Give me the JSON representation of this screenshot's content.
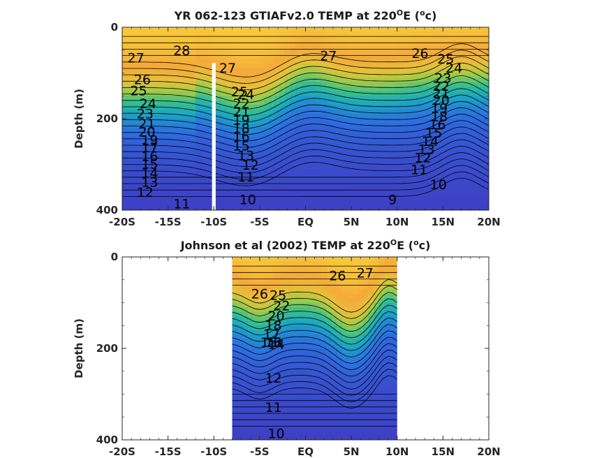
{
  "chart_data": [
    {
      "type": "heatmap",
      "title": "YR 062-123 GTIAFv2.0 TEMP at 220",
      "title_sup": "O",
      "title_unit_pre": "E (",
      "title_unit_sup": "o",
      "title_unit_post": "c)",
      "ylabel": "Depth (m)",
      "xlim": [
        -20,
        20
      ],
      "ylim": [
        0,
        400
      ],
      "y_reversed": true,
      "xticks": [
        "-20S",
        "-15S",
        "-10S",
        "-5S",
        "EQ",
        "5N",
        "10N",
        "15N",
        "20N"
      ],
      "yticks": [
        "0",
        "200",
        "400"
      ],
      "colormap": [
        "#3e3fc4",
        "#2c6fe0",
        "#1aa6c4",
        "#37bf8d",
        "#9bcb4a",
        "#e6c13a",
        "#f4a93a",
        "#f7cc3b"
      ],
      "mask_x_range": [
        -10.2,
        -9.8
      ],
      "mask_depth_from": 78,
      "contour_labels": [
        {
          "x": -18.5,
          "y": 68,
          "text": "27"
        },
        {
          "x": -13.5,
          "y": 52,
          "text": "28"
        },
        {
          "x": -8.5,
          "y": 90,
          "text": "27"
        },
        {
          "x": 2.5,
          "y": 63,
          "text": "27"
        },
        {
          "x": 12.5,
          "y": 58,
          "text": "26"
        },
        {
          "x": 15.3,
          "y": 70,
          "text": "25"
        },
        {
          "x": 16.2,
          "y": 90,
          "text": "24"
        },
        {
          "x": -17.8,
          "y": 115,
          "text": "26"
        },
        {
          "x": -18.2,
          "y": 140,
          "text": "25"
        },
        {
          "x": -17.2,
          "y": 168,
          "text": "24"
        },
        {
          "x": -17.5,
          "y": 190,
          "text": "23"
        },
        {
          "x": -17.3,
          "y": 212,
          "text": "21"
        },
        {
          "x": -17.3,
          "y": 230,
          "text": "20"
        },
        {
          "x": -17.0,
          "y": 248,
          "text": "19"
        },
        {
          "x": -17.0,
          "y": 264,
          "text": "17"
        },
        {
          "x": -17.0,
          "y": 283,
          "text": "16"
        },
        {
          "x": -17.0,
          "y": 300,
          "text": "15"
        },
        {
          "x": -17.0,
          "y": 320,
          "text": "14"
        },
        {
          "x": -17.0,
          "y": 340,
          "text": "13"
        },
        {
          "x": -17.5,
          "y": 362,
          "text": "12"
        },
        {
          "x": -13.5,
          "y": 387,
          "text": "11"
        },
        {
          "x": -7.2,
          "y": 142,
          "text": "25"
        },
        {
          "x": -6.5,
          "y": 148,
          "text": "24"
        },
        {
          "x": -7.0,
          "y": 168,
          "text": "22"
        },
        {
          "x": -7.0,
          "y": 186,
          "text": "21"
        },
        {
          "x": -7.0,
          "y": 204,
          "text": "19"
        },
        {
          "x": -7.0,
          "y": 222,
          "text": "18"
        },
        {
          "x": -7.0,
          "y": 240,
          "text": "16"
        },
        {
          "x": -7.0,
          "y": 260,
          "text": "15"
        },
        {
          "x": -6.5,
          "y": 282,
          "text": "13"
        },
        {
          "x": -6.0,
          "y": 302,
          "text": "12"
        },
        {
          "x": -6.5,
          "y": 328,
          "text": "11"
        },
        {
          "x": -6.3,
          "y": 378,
          "text": "10"
        },
        {
          "x": 9.5,
          "y": 378,
          "text": "9"
        },
        {
          "x": 15.0,
          "y": 112,
          "text": "23"
        },
        {
          "x": 14.8,
          "y": 130,
          "text": "22"
        },
        {
          "x": 14.8,
          "y": 146,
          "text": "21"
        },
        {
          "x": 14.8,
          "y": 160,
          "text": "20"
        },
        {
          "x": 14.6,
          "y": 178,
          "text": "19"
        },
        {
          "x": 14.6,
          "y": 196,
          "text": "18"
        },
        {
          "x": 14.4,
          "y": 214,
          "text": "16"
        },
        {
          "x": 14.0,
          "y": 232,
          "text": "15"
        },
        {
          "x": 13.6,
          "y": 250,
          "text": "14"
        },
        {
          "x": 13.2,
          "y": 268,
          "text": "13"
        },
        {
          "x": 12.8,
          "y": 286,
          "text": "12"
        },
        {
          "x": 12.4,
          "y": 312,
          "text": "11"
        },
        {
          "x": 14.5,
          "y": 345,
          "text": "10"
        }
      ]
    },
    {
      "type": "heatmap",
      "title": "Johnson et al (2002) TEMP at 220",
      "title_sup": "O",
      "title_unit_pre": "E (",
      "title_unit_sup": "o",
      "title_unit_post": "c)",
      "ylabel": "Depth (m)",
      "xlim": [
        -20,
        20
      ],
      "ylim": [
        0,
        400
      ],
      "y_reversed": true,
      "xticks": [
        "-20S",
        "-15S",
        "-10S",
        "-5S",
        "EQ",
        "5N",
        "10N",
        "15N",
        "20N"
      ],
      "yticks": [
        "0",
        "200",
        "400"
      ],
      "colormap": [
        "#3e3fc4",
        "#2c6fe0",
        "#1aa6c4",
        "#37bf8d",
        "#9bcb4a",
        "#e6c13a",
        "#f4a93a",
        "#f7cc3b"
      ],
      "data_x_range": [
        -8,
        10
      ],
      "contour_labels": [
        {
          "x": -5.0,
          "y": 82,
          "text": "26"
        },
        {
          "x": -3.0,
          "y": 85,
          "text": "25"
        },
        {
          "x": -2.6,
          "y": 108,
          "text": "22"
        },
        {
          "x": -3.2,
          "y": 130,
          "text": "20"
        },
        {
          "x": -3.5,
          "y": 150,
          "text": "18"
        },
        {
          "x": -3.7,
          "y": 170,
          "text": "17"
        },
        {
          "x": -4.0,
          "y": 188,
          "text": "15"
        },
        {
          "x": -3.5,
          "y": 188,
          "text": "16"
        },
        {
          "x": -3.2,
          "y": 192,
          "text": "14"
        },
        {
          "x": -3.5,
          "y": 188,
          "text": "13"
        },
        {
          "x": 3.5,
          "y": 42,
          "text": "26"
        },
        {
          "x": 6.5,
          "y": 36,
          "text": "27"
        },
        {
          "x": -3.5,
          "y": 266,
          "text": "12"
        },
        {
          "x": -3.5,
          "y": 330,
          "text": "11"
        },
        {
          "x": -3.2,
          "y": 387,
          "text": "10"
        }
      ]
    }
  ],
  "annotation_legend": []
}
